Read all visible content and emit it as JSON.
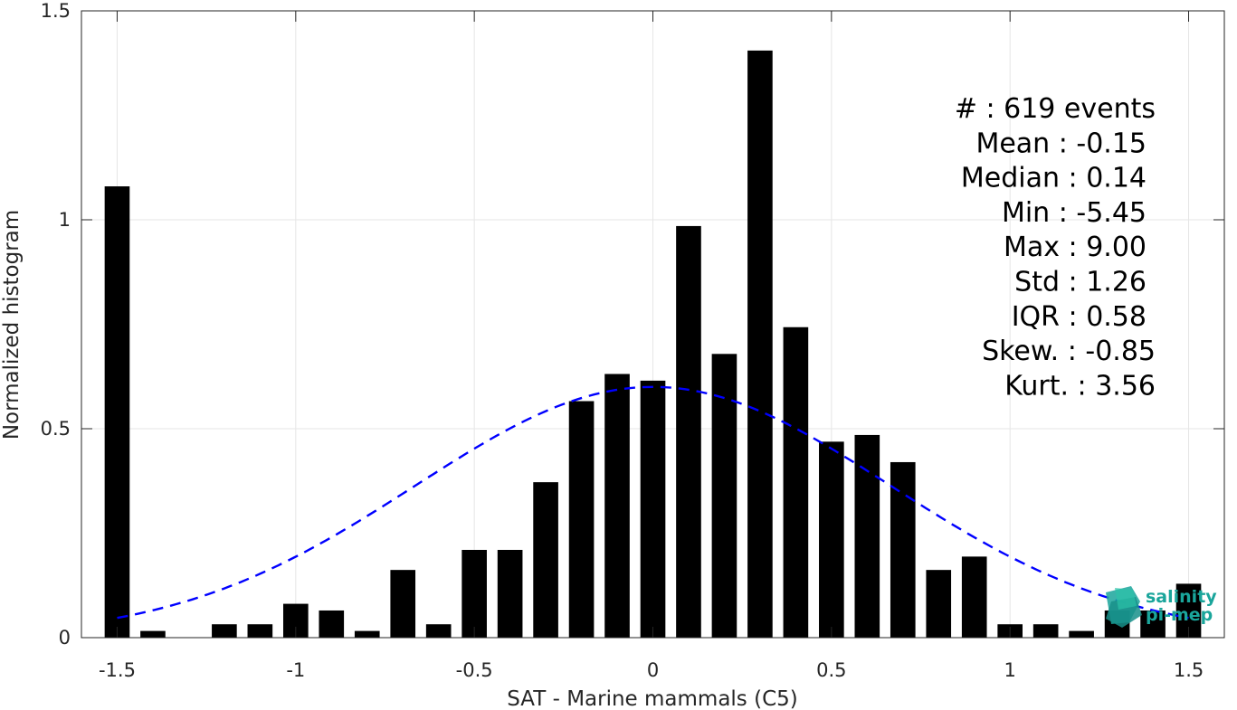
{
  "chart_data": {
    "type": "bar",
    "title": "",
    "xlabel": "SAT - Marine mammals (C5)",
    "ylabel": "Normalized histogram",
    "xlim": [
      -1.6,
      1.6
    ],
    "ylim": [
      0,
      1.5
    ],
    "grid": true,
    "x_ticks": [
      -1.5,
      -1,
      -0.5,
      0,
      0.5,
      1,
      1.5
    ],
    "x_tick_labels": [
      "-1.5",
      "-1",
      "-0.5",
      "0",
      "0.5",
      "1",
      "1.5"
    ],
    "y_ticks": [
      0,
      0.5,
      1,
      1.5
    ],
    "y_tick_labels": [
      "0",
      "0.5",
      "1",
      "1.5"
    ],
    "bin_width": 0.1,
    "bar_color": "#000000",
    "x": [
      -1.5,
      -1.4,
      -1.3,
      -1.2,
      -1.1,
      -1.0,
      -0.9,
      -0.8,
      -0.7,
      -0.6,
      -0.5,
      -0.4,
      -0.3,
      -0.2,
      -0.1,
      0.0,
      0.1,
      0.2,
      0.3,
      0.4,
      0.5,
      0.6,
      0.7,
      0.8,
      0.9,
      1.0,
      1.1,
      1.2,
      1.3,
      1.4,
      1.5
    ],
    "values": [
      1.08,
      0.016,
      0,
      0.032,
      0.032,
      0.081,
      0.065,
      0.016,
      0.162,
      0.032,
      0.21,
      0.21,
      0.372,
      0.566,
      0.631,
      0.615,
      0.985,
      0.679,
      1.405,
      0.743,
      0.469,
      0.485,
      0.42,
      0.162,
      0.194,
      0.032,
      0.032,
      0.016,
      0.065,
      0.065,
      0.129
    ],
    "fit_curve": {
      "type": "gaussian",
      "mean": 0.0,
      "std": 0.665,
      "peak": 0.6,
      "color": "#0000ff",
      "style": "dashed",
      "x_range": [
        -1.5,
        1.5
      ]
    }
  },
  "stats": [
    {
      "label": "#  : 619 events"
    },
    {
      "label": "Mean : -0.15"
    },
    {
      "label": "Median : 0.14"
    },
    {
      "label": "Min : -5.45"
    },
    {
      "label": "Max : 9.00"
    },
    {
      "label": "Std : 1.26"
    },
    {
      "label": "IQR : 0.58"
    },
    {
      "label": "Skew. : -0.85"
    },
    {
      "label": "Kurt. : 3.56"
    }
  ],
  "logo": {
    "line1": "salinity",
    "line2": "pi-mep",
    "color": "#1aa59b"
  }
}
